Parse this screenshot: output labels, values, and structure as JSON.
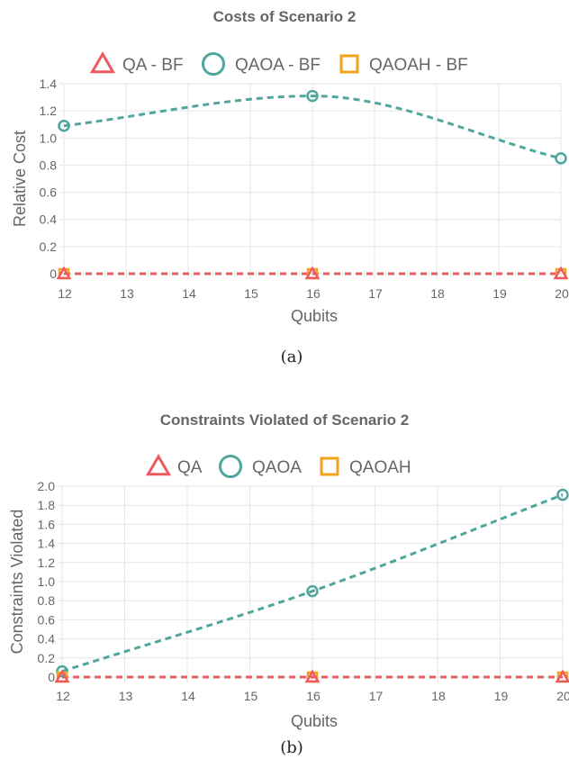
{
  "chart_data": [
    {
      "type": "line",
      "title": "Costs of Scenario 2",
      "xlabel": "Qubits",
      "ylabel": "Relative Cost",
      "x": [
        12,
        16,
        20
      ],
      "x_ticks": [
        12,
        13,
        14,
        15,
        16,
        17,
        18,
        19,
        20
      ],
      "xlim": [
        12,
        20
      ],
      "ylim": [
        0,
        1.4
      ],
      "y_ticks": [
        0,
        0.2,
        0.4,
        0.6,
        0.8,
        1.0,
        1.2,
        1.4
      ],
      "y_tick_labels": [
        "0",
        "0.2",
        "0.4",
        "0.6",
        "0.8",
        "1.0",
        "1.2",
        "1.4"
      ],
      "grid": true,
      "legend_position": "top",
      "caption": "(a)",
      "series": [
        {
          "name": "QA - BF",
          "marker": "triangle",
          "color": "#f0595f",
          "values": [
            0,
            0,
            0
          ]
        },
        {
          "name": "QAOA - BF",
          "marker": "circle",
          "color": "#4fa69c",
          "values": [
            1.09,
            1.31,
            0.85
          ]
        },
        {
          "name": "QAOAH - BF",
          "marker": "square",
          "color": "#f2a31b",
          "values": [
            0,
            0,
            0
          ]
        }
      ]
    },
    {
      "type": "line",
      "title": "Constraints Violated of Scenario 2",
      "xlabel": "Qubits",
      "ylabel": "Constraints Violated",
      "x": [
        12,
        16,
        20
      ],
      "x_ticks": [
        12,
        13,
        14,
        15,
        16,
        17,
        18,
        19,
        20
      ],
      "xlim": [
        12,
        20
      ],
      "ylim": [
        0,
        2.0
      ],
      "y_ticks": [
        0,
        0.2,
        0.4,
        0.6,
        0.8,
        1.0,
        1.2,
        1.4,
        1.6,
        1.8,
        2.0
      ],
      "y_tick_labels": [
        "0",
        "0.2",
        "0.4",
        "0.6",
        "0.8",
        "1.0",
        "1.2",
        "1.4",
        "1.6",
        "1.8",
        "2.0"
      ],
      "grid": true,
      "legend_position": "top",
      "caption": "(b)",
      "series": [
        {
          "name": "QA",
          "marker": "triangle",
          "color": "#f0595f",
          "values": [
            0,
            0,
            0
          ]
        },
        {
          "name": "QAOA",
          "marker": "circle",
          "color": "#4fa69c",
          "values": [
            0.06,
            0.9,
            1.91
          ]
        },
        {
          "name": "QAOAH",
          "marker": "square",
          "color": "#f2a31b",
          "values": [
            0,
            0,
            0
          ]
        }
      ]
    }
  ]
}
